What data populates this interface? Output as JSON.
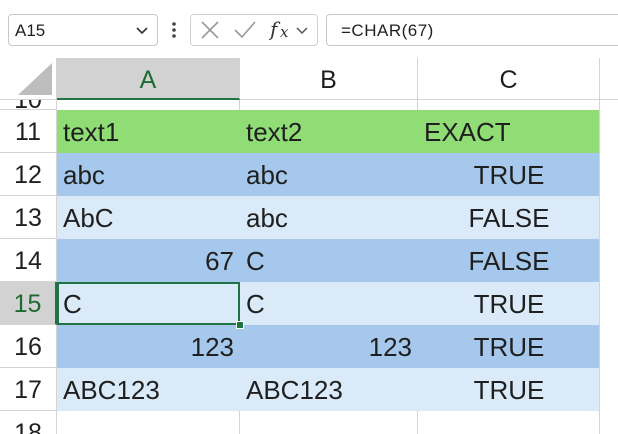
{
  "formula_bar": {
    "name_box": "A15",
    "formula": "=CHAR(67)",
    "cancel_icon": "close-icon",
    "enter_icon": "check-icon",
    "function_icon": "fx-icon"
  },
  "columns": [
    "A",
    "B",
    "C"
  ],
  "selected_column": "A",
  "rows": [
    {
      "num": "10",
      "cells": [
        "",
        "",
        ""
      ]
    },
    {
      "num": "11",
      "cells": [
        "text1",
        "text2",
        "EXACT"
      ]
    },
    {
      "num": "12",
      "cells": [
        "abc",
        "abc",
        "TRUE"
      ]
    },
    {
      "num": "13",
      "cells": [
        "AbC",
        "abc",
        "FALSE"
      ]
    },
    {
      "num": "14",
      "cells": [
        "67",
        "C",
        "FALSE"
      ]
    },
    {
      "num": "15",
      "cells": [
        "C",
        "C",
        "TRUE"
      ]
    },
    {
      "num": "16",
      "cells": [
        "123",
        "123",
        "TRUE"
      ]
    },
    {
      "num": "17",
      "cells": [
        "ABC123",
        "ABC123",
        "TRUE"
      ]
    },
    {
      "num": "18",
      "cells": [
        "",
        "",
        ""
      ]
    }
  ],
  "colors": {
    "header_fill": "#90dc75",
    "band_dark": "#a6c8ec",
    "band_light": "#daeaf8",
    "selection": "#217346"
  }
}
